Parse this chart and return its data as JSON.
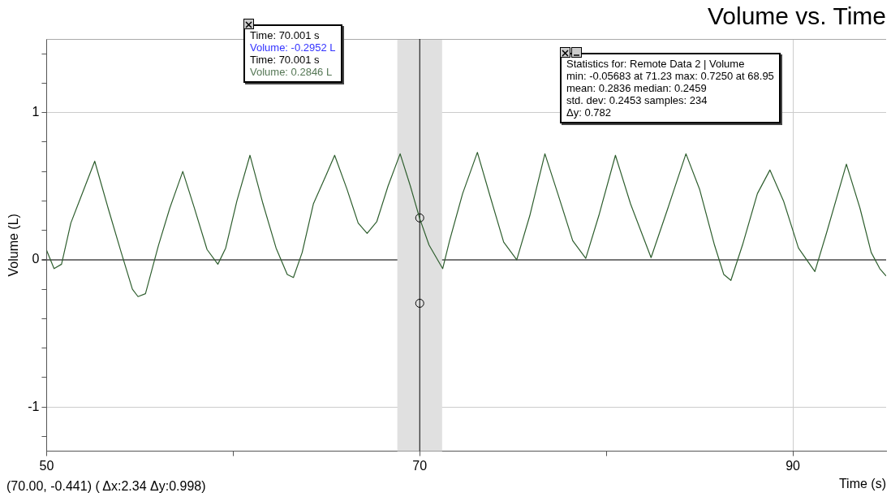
{
  "chart_data": {
    "type": "line",
    "title": "Volume vs. Time",
    "xlabel": "Time (s)",
    "ylabel": "Volume (L)",
    "xlim": [
      50,
      95
    ],
    "xticks": [
      50,
      {
        "value": 60,
        "label": null
      },
      70,
      {
        "value": 80,
        "label": null
      },
      90
    ],
    "ylim": [
      -1.3,
      1.5
    ],
    "yticks": [
      {
        "value": -1.2,
        "label": null
      },
      -1,
      {
        "value": -0.8,
        "label": null
      },
      {
        "value": -0.6,
        "label": null
      },
      {
        "value": -0.4,
        "label": null
      },
      {
        "value": -0.2,
        "label": null
      },
      0,
      {
        "value": 0.2,
        "label": null
      },
      {
        "value": 0.4,
        "label": null
      },
      {
        "value": 0.6,
        "label": null
      },
      {
        "value": 0.8,
        "label": null
      },
      1,
      {
        "value": 1.2,
        "label": null
      },
      {
        "value": 1.4,
        "label": null
      }
    ],
    "grid": true,
    "series": [
      {
        "color": "#2e5e2e",
        "x": [
          50.0,
          50.4,
          50.8,
          51.3,
          52.0,
          52.58,
          53.3,
          54.0,
          54.6,
          54.9,
          55.3,
          56.0,
          56.6,
          57.3,
          57.9,
          58.6,
          59.18,
          59.6,
          60.2,
          60.9,
          61.6,
          62.3,
          62.9,
          63.23,
          63.7,
          64.3,
          65.0,
          65.44,
          66.1,
          66.7,
          67.18,
          67.7,
          68.3,
          68.95,
          69.5,
          70.0,
          70.5,
          71.23,
          71.6,
          72.3,
          73.09,
          73.8,
          74.5,
          75.2,
          75.9,
          76.71,
          77.4,
          78.2,
          78.9,
          79.6,
          80.49,
          81.3,
          82.4,
          83.3,
          84.27,
          85.0,
          85.8,
          86.3,
          86.68,
          87.3,
          88.1,
          88.77,
          89.5,
          90.3,
          91.18,
          91.8,
          92.87,
          93.6,
          94.2,
          94.66,
          95.0
        ],
        "values": [
          0.065,
          -0.06,
          -0.03,
          0.25,
          0.48,
          0.67,
          0.35,
          0.05,
          -0.2,
          -0.25,
          -0.23,
          0.1,
          0.35,
          0.6,
          0.36,
          0.07,
          -0.03,
          0.08,
          0.4,
          0.71,
          0.38,
          0.08,
          -0.1,
          -0.12,
          0.05,
          0.38,
          0.58,
          0.71,
          0.48,
          0.25,
          0.18,
          0.26,
          0.5,
          0.72,
          0.5,
          0.28,
          0.1,
          -0.06,
          0.13,
          0.45,
          0.73,
          0.42,
          0.12,
          0.0,
          0.3,
          0.72,
          0.45,
          0.13,
          0.01,
          0.3,
          0.71,
          0.38,
          0.015,
          0.35,
          0.72,
          0.48,
          0.1,
          -0.1,
          -0.14,
          0.1,
          0.45,
          0.61,
          0.4,
          0.08,
          -0.08,
          0.18,
          0.65,
          0.35,
          0.05,
          -0.06,
          -0.11
        ]
      },
      {
        "type": "scatter",
        "color": "#000000",
        "x": [
          70,
          70
        ],
        "values": [
          0.2846,
          -0.2952
        ]
      }
    ],
    "ref_lines": [
      {
        "axis": "x",
        "value": 70,
        "color": "#000000"
      }
    ],
    "bands": [
      {
        "axis": "x",
        "from": 68.8,
        "to": 71.2,
        "color": "#e0e0e0"
      }
    ],
    "annotations": [
      "Time: 70.001 s",
      "Volume: -0.2952 L",
      "Time: 70.001 s",
      "Volume: 0.2846 L",
      "Statistics for: Remote Data 2 | Volume",
      "min: -0.05683 at 71.23 max: 0.7250 at 68.95",
      "mean: 0.2836 median: 0.2459",
      "std. dev: 0.2453 samples: 234",
      "Δy: 0.782",
      "(70.00, -0.441) ( Δx:2.34 Δy:0.998)"
    ]
  }
}
